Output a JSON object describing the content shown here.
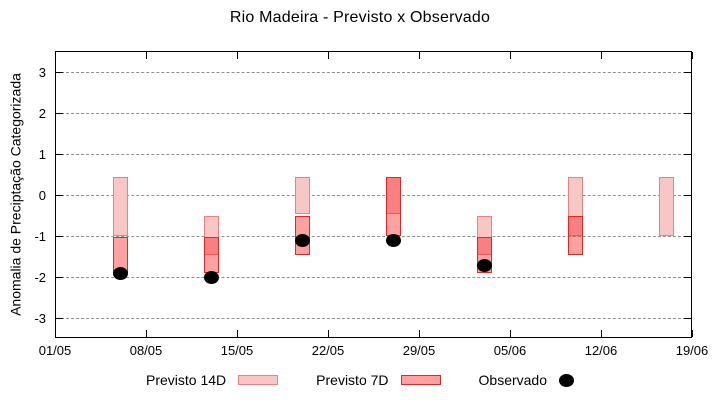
{
  "chart_data": {
    "type": "range-bar+scatter",
    "title": "Rio Madeira - Previsto x Observado",
    "ylabel": "Anomalia de Preciptação Categorizada",
    "xlabel": "",
    "ylim": [
      -3.5,
      3.5
    ],
    "y_ticks": [
      3,
      2,
      1,
      0,
      -1,
      -2,
      -3
    ],
    "x_ticks": [
      {
        "day": 0,
        "label": "01/05"
      },
      {
        "day": 7,
        "label": "08/05"
      },
      {
        "day": 14,
        "label": "15/05"
      },
      {
        "day": 21,
        "label": "22/05"
      },
      {
        "day": 28,
        "label": "29/05"
      },
      {
        "day": 35,
        "label": "05/06"
      },
      {
        "day": 42,
        "label": "12/06"
      },
      {
        "day": 49,
        "label": "19/06"
      }
    ],
    "grid": {
      "horizontal_dashed": true,
      "color": "#8f8f8f"
    },
    "legend_position": "bottom-center",
    "series": [
      {
        "name": "Previsto 14D",
        "type": "range-bar",
        "fill": "#f9c6c6",
        "border": "#f08080",
        "points": [
          {
            "date": "06/05",
            "day": 5,
            "high": 0.45,
            "low": -1.0
          },
          {
            "date": "13/05",
            "day": 12,
            "high": -0.5,
            "low": -1.45
          },
          {
            "date": "20/05",
            "day": 19,
            "high": 0.45,
            "low": -0.45
          },
          {
            "date": "27/05",
            "day": 26,
            "high": 0.45,
            "low": -0.45
          },
          {
            "date": "03/06",
            "day": 33,
            "high": -0.5,
            "low": -1.45
          },
          {
            "date": "10/06",
            "day": 40,
            "high": 0.45,
            "low": -1.0
          },
          {
            "date": "17/06",
            "day": 47,
            "high": 0.45,
            "low": -1.0
          }
        ]
      },
      {
        "name": "Previsto 7D",
        "type": "range-bar",
        "fill": "rgba(250,30,30,0.42)",
        "border": "#e62626",
        "points": [
          {
            "date": "06/05",
            "day": 5,
            "high": -1.0,
            "low": -1.9
          },
          {
            "date": "13/05",
            "day": 12,
            "high": -1.0,
            "low": -1.9
          },
          {
            "date": "20/05",
            "day": 19,
            "high": -0.5,
            "low": -1.45
          },
          {
            "date": "27/05",
            "day": 26,
            "high": 0.45,
            "low": -1.0
          },
          {
            "date": "03/06",
            "day": 33,
            "high": -1.0,
            "low": -1.9
          },
          {
            "date": "10/06",
            "day": 40,
            "high": -0.5,
            "low": -1.45
          }
        ]
      },
      {
        "name": "Observado",
        "type": "scatter",
        "color": "#000000",
        "points": [
          {
            "date": "06/05",
            "day": 5,
            "value": -1.9
          },
          {
            "date": "13/05",
            "day": 12,
            "value": -2.0
          },
          {
            "date": "20/05",
            "day": 19,
            "value": -1.1
          },
          {
            "date": "27/05",
            "day": 26,
            "value": -1.1
          },
          {
            "date": "03/06",
            "day": 33,
            "value": -1.7
          }
        ]
      }
    ]
  }
}
